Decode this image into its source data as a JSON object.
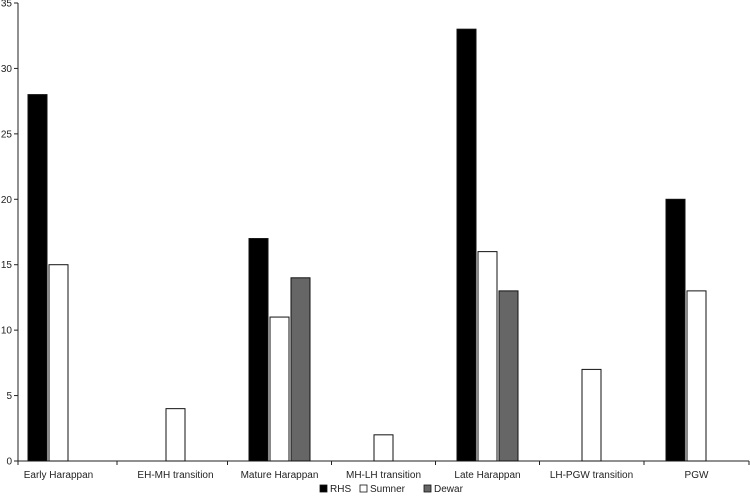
{
  "chart_data": {
    "type": "bar",
    "categories": [
      "Early Harappan",
      "EH-MH transition",
      "Mature Harappan",
      "MH-LH transition",
      "Late Harappan",
      "LH-PGW transition",
      "PGW"
    ],
    "series": [
      {
        "name": "RHS",
        "values": [
          28,
          null,
          17,
          null,
          33,
          null,
          20
        ],
        "color": "#000000"
      },
      {
        "name": "Sumner",
        "values": [
          15,
          4,
          11,
          2,
          16,
          7,
          13
        ],
        "color": "#ffffff"
      },
      {
        "name": "Dewar",
        "values": [
          null,
          null,
          14,
          null,
          13,
          null,
          null
        ],
        "color": "#666666"
      }
    ],
    "ylim": [
      0,
      35
    ],
    "yticks": [
      "0",
      "5",
      "10",
      "15",
      "20",
      "25",
      "30",
      "35"
    ],
    "grid": false,
    "legend_position": "bottom-center"
  }
}
